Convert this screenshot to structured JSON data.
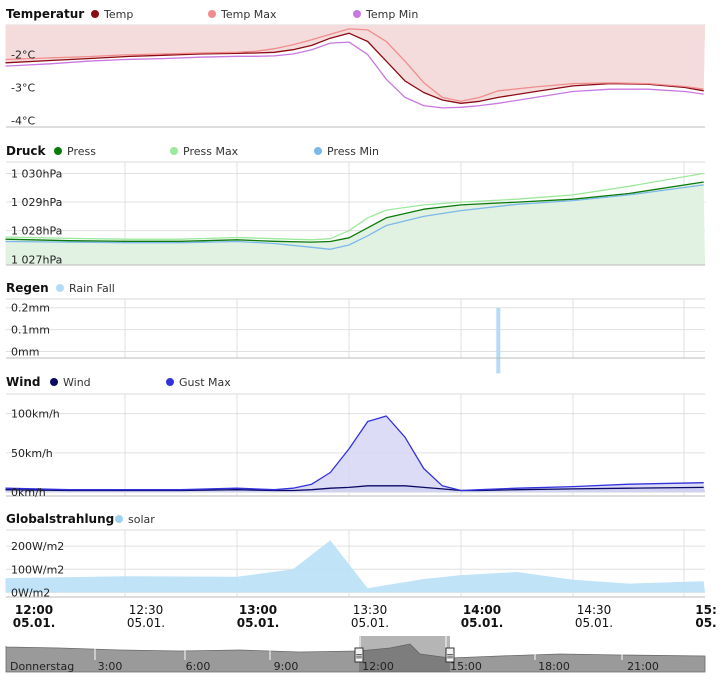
{
  "chart_data": [
    {
      "type": "area",
      "title": "Temperatur",
      "yunit": "°C",
      "ylim": [
        -4.2,
        -1.1
      ],
      "yticks": [
        -4,
        -3,
        -2
      ],
      "ytick_labels": [
        "-4°C",
        "-3°C",
        "-2°C"
      ],
      "fill_color": "#f5dcdc",
      "x": [
        "11:58",
        "12:10",
        "12:20",
        "12:30",
        "12:40",
        "12:50",
        "13:00",
        "13:05",
        "13:10",
        "13:15",
        "13:20",
        "13:25",
        "13:30",
        "13:35",
        "13:40",
        "13:45",
        "13:50",
        "13:55",
        "14:00",
        "14:05",
        "14:10",
        "14:20",
        "14:30",
        "14:40",
        "14:50",
        "15:00",
        "15:05"
      ],
      "series": [
        {
          "name": "Temp",
          "color": "#8b0a14",
          "values": [
            -2.25,
            -2.18,
            -2.12,
            -2.06,
            -2.02,
            -1.98,
            -1.96,
            -1.95,
            -1.93,
            -1.85,
            -1.72,
            -1.5,
            -1.35,
            -1.6,
            -2.2,
            -2.8,
            -3.15,
            -3.38,
            -3.48,
            -3.42,
            -3.3,
            -3.12,
            -2.95,
            -2.88,
            -2.9,
            -3.0,
            -3.1
          ]
        },
        {
          "name": "Temp Max",
          "color": "#f08c8c",
          "values": [
            -2.15,
            -2.1,
            -2.06,
            -2.01,
            -1.98,
            -1.95,
            -1.93,
            -1.9,
            -1.82,
            -1.7,
            -1.55,
            -1.38,
            -1.22,
            -1.25,
            -1.6,
            -2.2,
            -2.85,
            -3.3,
            -3.42,
            -3.3,
            -3.1,
            -2.98,
            -2.88,
            -2.86,
            -2.88,
            -2.97,
            -3.05
          ]
        },
        {
          "name": "Temp Min",
          "color": "#c878e0",
          "values": [
            -2.35,
            -2.28,
            -2.2,
            -2.15,
            -2.12,
            -2.08,
            -2.05,
            -2.05,
            -2.04,
            -1.98,
            -1.85,
            -1.65,
            -1.62,
            -2.0,
            -2.75,
            -3.3,
            -3.55,
            -3.62,
            -3.6,
            -3.55,
            -3.48,
            -3.3,
            -3.12,
            -3.05,
            -3.05,
            -3.12,
            -3.2
          ]
        }
      ]
    },
    {
      "type": "area",
      "title": "Druck",
      "yunit": "hPa",
      "ylim": [
        1026.8,
        1030.4
      ],
      "yticks": [
        1027,
        1028,
        1029,
        1030
      ],
      "ytick_labels": [
        "1 027hPa",
        "1 028hPa",
        "1 029hPa",
        "1 030hPa"
      ],
      "fill_color": "#e2f2e2",
      "x": [
        "11:58",
        "12:15",
        "12:30",
        "12:45",
        "13:00",
        "13:10",
        "13:20",
        "13:25",
        "13:30",
        "13:35",
        "13:40",
        "13:50",
        "14:00",
        "14:15",
        "14:30",
        "14:45",
        "15:05"
      ],
      "series": [
        {
          "name": "Press",
          "color": "#0a7a0a",
          "values": [
            1027.7,
            1027.65,
            1027.63,
            1027.63,
            1027.68,
            1027.63,
            1027.6,
            1027.62,
            1027.75,
            1028.1,
            1028.45,
            1028.75,
            1028.9,
            1029.0,
            1029.1,
            1029.3,
            1029.7
          ]
        },
        {
          "name": "Press Max",
          "color": "#9ce89c",
          "values": [
            1027.78,
            1027.73,
            1027.7,
            1027.7,
            1027.76,
            1027.72,
            1027.68,
            1027.72,
            1028.0,
            1028.45,
            1028.72,
            1028.9,
            1029.0,
            1029.1,
            1029.25,
            1029.55,
            1030.0
          ]
        },
        {
          "name": "Press Min",
          "color": "#7cb8ea",
          "values": [
            1027.62,
            1027.6,
            1027.58,
            1027.58,
            1027.62,
            1027.55,
            1027.42,
            1027.35,
            1027.5,
            1027.82,
            1028.18,
            1028.5,
            1028.7,
            1028.92,
            1029.05,
            1029.25,
            1029.6
          ]
        }
      ]
    },
    {
      "type": "bar",
      "title": "Regen",
      "yunit": "mm",
      "ylim": [
        -0.03,
        0.24
      ],
      "yticks": [
        0,
        0.1,
        0.2
      ],
      "ytick_labels": [
        "0mm",
        "0.1mm",
        "0.2mm"
      ],
      "series": [
        {
          "name": "Rain Fall",
          "color": "#b4dcf5",
          "points": [
            {
              "x": "14:10",
              "value": 0.2
            }
          ]
        }
      ]
    },
    {
      "type": "area",
      "title": "Wind",
      "yunit": "km/h",
      "ylim": [
        -5,
        125
      ],
      "yticks": [
        0,
        50,
        100
      ],
      "ytick_labels": [
        "0km/h",
        "50km/h",
        "100km/h"
      ],
      "x": [
        "11:58",
        "12:15",
        "12:30",
        "12:45",
        "13:00",
        "13:10",
        "13:15",
        "13:20",
        "13:25",
        "13:30",
        "13:35",
        "13:40",
        "13:45",
        "13:50",
        "13:55",
        "14:00",
        "14:05",
        "14:15",
        "14:30",
        "14:45",
        "15:05"
      ],
      "series": [
        {
          "name": "Wind",
          "color": "#0a0a64",
          "fill": "#cfcff0",
          "values": [
            3,
            2,
            2,
            2,
            3,
            2,
            2,
            3,
            5,
            6,
            8,
            8,
            8,
            6,
            4,
            2,
            2,
            3,
            4,
            5,
            6
          ]
        },
        {
          "name": "Gust Max",
          "color": "#3232dc",
          "fill": "#d8d8f6",
          "values": [
            5,
            3,
            3,
            3,
            5,
            3,
            5,
            10,
            25,
            55,
            90,
            97,
            70,
            30,
            8,
            2,
            3,
            5,
            7,
            10,
            12
          ]
        }
      ]
    },
    {
      "type": "area",
      "title": "Globalstrahlung",
      "yunit": "W/m2",
      "ylim": [
        -20,
        270
      ],
      "yticks": [
        0,
        100,
        200
      ],
      "ytick_labels": [
        "0W/m2",
        "100W/m2",
        "200W/m2"
      ],
      "x": [
        "11:58",
        "12:30",
        "13:00",
        "13:15",
        "13:25",
        "13:35",
        "13:50",
        "14:00",
        "14:15",
        "14:30",
        "14:45",
        "15:05"
      ],
      "series": [
        {
          "name": "solar",
          "color": "#9ed2f2",
          "fill": "#b9e0f7",
          "values": [
            62,
            70,
            68,
            100,
            225,
            18,
            58,
            75,
            88,
            55,
            38,
            48
          ]
        }
      ]
    }
  ],
  "time_axis": [
    {
      "time": "12:00",
      "date": "05.01.",
      "major": true
    },
    {
      "time": "12:30",
      "date": "05.01.",
      "major": false
    },
    {
      "time": "13:00",
      "date": "05.01.",
      "major": true
    },
    {
      "time": "13:30",
      "date": "05.01.",
      "major": false
    },
    {
      "time": "14:00",
      "date": "05.01.",
      "major": true
    },
    {
      "time": "14:30",
      "date": "05.01.",
      "major": false
    },
    {
      "time": "15:",
      "date": "05.",
      "major": true
    }
  ],
  "navigator": {
    "labels": [
      "Donnerstag",
      "3:00",
      "6:00",
      "9:00",
      "12:00",
      "15:00",
      "18:00",
      "21:00"
    ],
    "selected_range": [
      "12:00",
      "15:05"
    ],
    "handle_glyph": "≡"
  }
}
